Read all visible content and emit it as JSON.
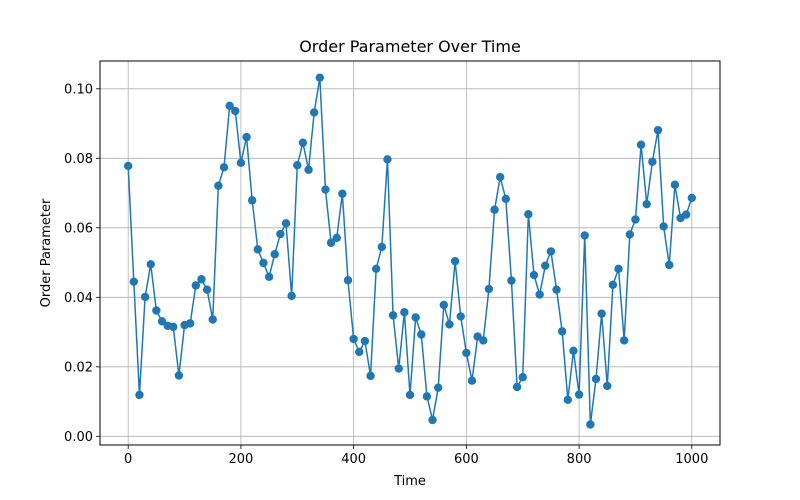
{
  "chart_data": {
    "type": "line",
    "title": "Order Parameter Over Time",
    "xlabel": "Time",
    "ylabel": "Order Parameter",
    "xlim": [
      -50,
      1050
    ],
    "ylim": [
      -0.0025,
      0.108
    ],
    "xticks": [
      0,
      200,
      400,
      600,
      800,
      1000
    ],
    "xtick_labels": [
      "0",
      "200",
      "400",
      "600",
      "800",
      "1000"
    ],
    "yticks": [
      0.0,
      0.02,
      0.04,
      0.06,
      0.08,
      0.1
    ],
    "ytick_labels": [
      "0.00",
      "0.02",
      "0.04",
      "0.06",
      "0.08",
      "0.10"
    ],
    "grid": true,
    "marker": "circle",
    "series": [
      {
        "color": "#1f77b4",
        "x": [
          0,
          10,
          20,
          30,
          40,
          50,
          60,
          70,
          80,
          90,
          100,
          110,
          120,
          130,
          140,
          150,
          160,
          170,
          180,
          190,
          200,
          210,
          220,
          230,
          240,
          250,
          260,
          270,
          280,
          290,
          300,
          310,
          320,
          330,
          340,
          350,
          360,
          370,
          380,
          390,
          400,
          410,
          420,
          430,
          440,
          450,
          460,
          470,
          480,
          490,
          500,
          510,
          520,
          530,
          540,
          550,
          560,
          570,
          580,
          590,
          600,
          610,
          620,
          630,
          640,
          650,
          660,
          670,
          680,
          690,
          700,
          710,
          720,
          730,
          740,
          750,
          760,
          770,
          780,
          790,
          800,
          810,
          820,
          830,
          840,
          850,
          860,
          870,
          880,
          890,
          900,
          910,
          920,
          930,
          940,
          950,
          960,
          970,
          980,
          990,
          1000
        ],
        "y": [
          0.0778,
          0.0445,
          0.0119,
          0.0401,
          0.0495,
          0.0362,
          0.0331,
          0.0318,
          0.0315,
          0.0175,
          0.032,
          0.0325,
          0.0434,
          0.0452,
          0.0422,
          0.0336,
          0.0721,
          0.0774,
          0.0951,
          0.0936,
          0.0787,
          0.0861,
          0.0679,
          0.0538,
          0.0499,
          0.0459,
          0.0524,
          0.0582,
          0.0613,
          0.0404,
          0.078,
          0.0845,
          0.0767,
          0.0932,
          0.1032,
          0.071,
          0.0557,
          0.0571,
          0.0698,
          0.0449,
          0.028,
          0.0243,
          0.0274,
          0.0174,
          0.0482,
          0.0545,
          0.0797,
          0.0348,
          0.0195,
          0.0357,
          0.0119,
          0.0342,
          0.0293,
          0.0115,
          0.0047,
          0.014,
          0.0378,
          0.0322,
          0.0504,
          0.0345,
          0.024,
          0.016,
          0.0287,
          0.0276,
          0.0424,
          0.0652,
          0.0746,
          0.0683,
          0.0448,
          0.0142,
          0.017,
          0.0639,
          0.0464,
          0.0408,
          0.0491,
          0.0532,
          0.0422,
          0.0302,
          0.0105,
          0.0246,
          0.012,
          0.0578,
          0.0034,
          0.0165,
          0.0353,
          0.0145,
          0.0436,
          0.0482,
          0.0276,
          0.0581,
          0.0624,
          0.0839,
          0.0668,
          0.079,
          0.0881,
          0.0604,
          0.0493,
          0.0724,
          0.0628,
          0.0638,
          0.0686
        ]
      }
    ]
  }
}
